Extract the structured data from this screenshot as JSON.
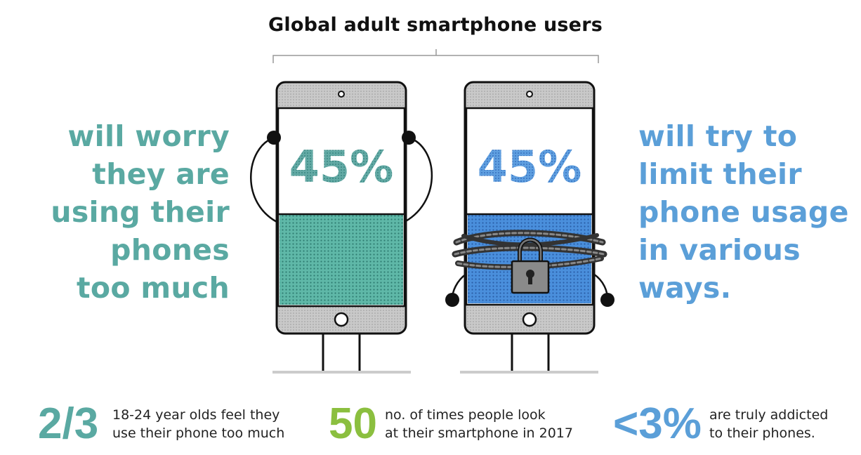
{
  "title": "Global adult smartphone users",
  "colors": {
    "teal": "#5aa9a2",
    "blue": "#5b9fd8",
    "green": "#8bbf3f",
    "phone_gray": "#c8c8c8",
    "outline": "#1a1a1a"
  },
  "left_phone": {
    "percent": "45%",
    "caption_lines": [
      "will worry",
      "they are",
      "using their",
      "phones",
      "too much"
    ],
    "icon": "worried-phone-illustration"
  },
  "right_phone": {
    "percent": "45%",
    "caption_lines": [
      "will try to",
      "limit their",
      "phone usage",
      "in various",
      "ways."
    ],
    "icon": "padlock-icon"
  },
  "stats": [
    {
      "number": "2/3",
      "lines": [
        "18-24 year olds feel they",
        "use their phone too much"
      ],
      "color": "#5aa9a2"
    },
    {
      "number": "50",
      "lines": [
        "no. of times people look",
        "at their smartphone in 2017"
      ],
      "color": "#8bbf3f"
    },
    {
      "number": "<3%",
      "lines": [
        "are truly addicted",
        "to their phones."
      ],
      "color": "#5b9fd8"
    }
  ]
}
